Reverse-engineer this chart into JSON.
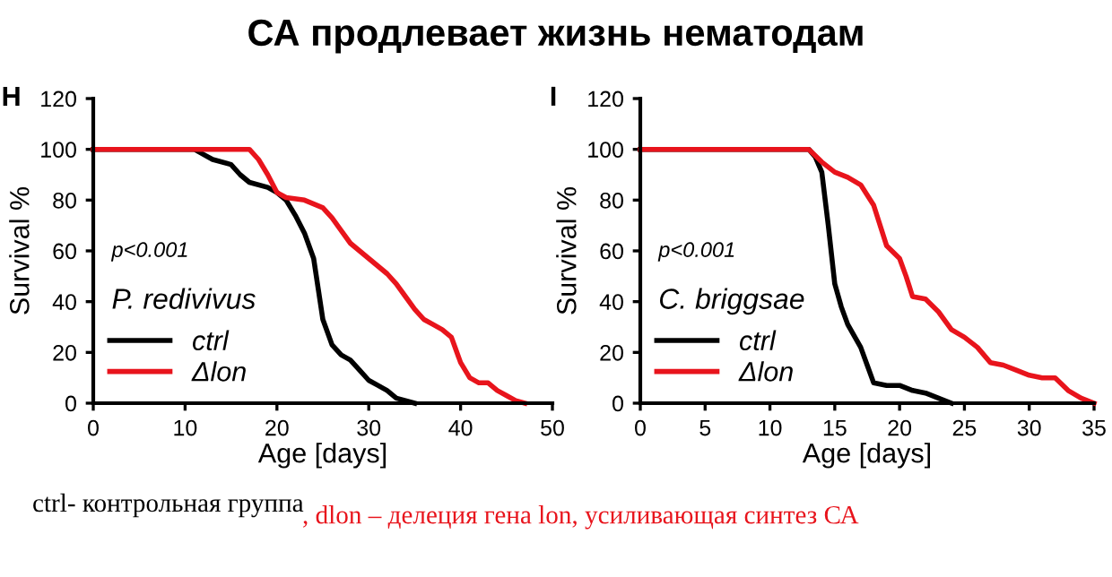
{
  "chart_data": [
    {
      "type": "line",
      "title": "СА продлевает жизнь нематодам",
      "xlabel": "Age [days]",
      "ylabel": "Survival %",
      "annotations": [
        "H",
        "p<0.001",
        "P. redivivus",
        "ctrl- контрольная группа",
        ", dlon – делеция гена lon, усиливающая синтез СА"
      ],
      "xlim": [
        0,
        50
      ],
      "xticks": [
        0,
        10,
        20,
        30,
        40,
        50
      ],
      "ylim": [
        0,
        120
      ],
      "yticks": [
        0,
        20,
        40,
        60,
        80,
        100,
        120
      ],
      "grid": false,
      "legend": "bottom left",
      "marker": "none",
      "line_style": "solid",
      "series": [
        {
          "name": "ctrl",
          "color": "#000000",
          "x": [
            0,
            11,
            12,
            13,
            15,
            16,
            17,
            19,
            20,
            21,
            22,
            23,
            24,
            24.5,
            25,
            26,
            27,
            28,
            29,
            30,
            31,
            32,
            33,
            34,
            35
          ],
          "values": [
            100,
            100,
            98,
            96,
            94,
            90,
            87,
            85,
            83,
            80,
            74,
            67,
            57,
            45,
            33,
            23,
            19,
            17,
            13,
            9,
            7,
            5,
            2,
            1,
            0
          ]
        },
        {
          "name": "Δlon",
          "color": "#e8141c",
          "x": [
            0,
            17,
            18,
            19,
            20,
            21,
            23,
            25,
            26,
            27,
            28,
            30,
            31,
            32,
            33,
            34,
            35,
            36,
            37,
            38,
            39,
            40,
            41,
            42,
            43,
            44,
            45,
            46,
            47
          ],
          "values": [
            100,
            100,
            96,
            90,
            83,
            81,
            80,
            77,
            73,
            68,
            63,
            57,
            54,
            51,
            47,
            42,
            37,
            33,
            31,
            29,
            26,
            16,
            10,
            8,
            8,
            5,
            3,
            1,
            0
          ]
        }
      ]
    },
    {
      "type": "line",
      "xlabel": "Age [days]",
      "ylabel": "Survival %",
      "annotations": [
        "I",
        "p<0.001",
        "C. briggsae"
      ],
      "xlim": [
        0,
        35
      ],
      "xticks": [
        0,
        5,
        10,
        15,
        20,
        25,
        30,
        35
      ],
      "ylim": [
        0,
        120
      ],
      "yticks": [
        0,
        20,
        40,
        60,
        80,
        100,
        120
      ],
      "grid": false,
      "legend": "bottom left",
      "marker": "none",
      "line_style": "solid",
      "series": [
        {
          "name": "ctrl",
          "color": "#000000",
          "x": [
            0,
            13,
            13.5,
            14,
            14.5,
            15,
            15.5,
            16,
            17,
            17.5,
            18,
            19,
            20,
            21,
            22,
            23,
            24
          ],
          "values": [
            100,
            100,
            97,
            91,
            70,
            47,
            38,
            31,
            22,
            15,
            8,
            7,
            7,
            5,
            4,
            2,
            0
          ]
        },
        {
          "name": "Δlon",
          "color": "#e8141c",
          "x": [
            0,
            13,
            14,
            15,
            16,
            17,
            18,
            19,
            20,
            20.5,
            21,
            22,
            23,
            24,
            25,
            26,
            27,
            28,
            29,
            30,
            31,
            32,
            33,
            34,
            35
          ],
          "values": [
            100,
            100,
            95,
            91,
            89,
            86,
            78,
            62,
            57,
            50,
            42,
            41,
            36,
            29,
            26,
            22,
            16,
            15,
            13,
            11,
            10,
            10,
            5,
            2,
            0
          ]
        }
      ]
    }
  ]
}
